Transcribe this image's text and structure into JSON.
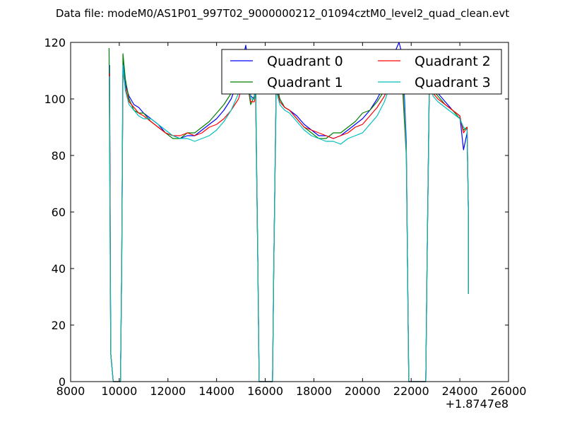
{
  "chart_data": {
    "type": "line",
    "title": "Data file: modeM0/AS1P01_997T02_9000000212_01094cztM0_level2_quad_clean.evt",
    "xlabel": "",
    "ylabel": "",
    "x_offset_label": "+1.8747e8",
    "xlim": [
      8000,
      26000
    ],
    "ylim": [
      0,
      120
    ],
    "x_ticks": [
      8000,
      10000,
      12000,
      14000,
      16000,
      18000,
      20000,
      22000,
      24000,
      26000
    ],
    "x_tick_labels": [
      "8000",
      "10000",
      "12000",
      "14000",
      "16000",
      "18000",
      "20000",
      "22000",
      "24000",
      "26000"
    ],
    "y_ticks": [
      0,
      20,
      40,
      60,
      80,
      100,
      120
    ],
    "y_tick_labels": [
      "0",
      "20",
      "40",
      "60",
      "80",
      "100",
      "120"
    ],
    "grid": false,
    "legend_placement": "top-right",
    "legend_columns": 2,
    "series": [
      {
        "name": "Quadrant 0",
        "color": "#0000ff",
        "points": [
          [
            9600,
            112
          ],
          [
            9650,
            10
          ],
          [
            9750,
            0
          ],
          [
            10050,
            0
          ],
          [
            10100,
            40
          ],
          [
            10150,
            113
          ],
          [
            10250,
            105
          ],
          [
            10400,
            101
          ],
          [
            10600,
            98
          ],
          [
            10800,
            97
          ],
          [
            11000,
            95
          ],
          [
            11300,
            93
          ],
          [
            11600,
            91
          ],
          [
            11900,
            88
          ],
          [
            12200,
            87
          ],
          [
            12500,
            86
          ],
          [
            12800,
            87
          ],
          [
            13100,
            87
          ],
          [
            13400,
            89
          ],
          [
            13700,
            91
          ],
          [
            14000,
            93
          ],
          [
            14300,
            96
          ],
          [
            14600,
            100
          ],
          [
            14900,
            107
          ],
          [
            15100,
            115
          ],
          [
            15200,
            119
          ],
          [
            15300,
            112
          ],
          [
            15400,
            101
          ],
          [
            15550,
            100
          ],
          [
            15600,
            105
          ],
          [
            15700,
            40
          ],
          [
            15750,
            0
          ],
          [
            16300,
            0
          ],
          [
            16350,
            40
          ],
          [
            16450,
            106
          ],
          [
            16600,
            100
          ],
          [
            16800,
            97
          ],
          [
            17000,
            96
          ],
          [
            17300,
            94
          ],
          [
            17600,
            91
          ],
          [
            17900,
            89
          ],
          [
            18200,
            87
          ],
          [
            18500,
            87
          ],
          [
            18800,
            86
          ],
          [
            19100,
            87
          ],
          [
            19400,
            89
          ],
          [
            19700,
            91
          ],
          [
            20000,
            93
          ],
          [
            20300,
            96
          ],
          [
            20600,
            100
          ],
          [
            20900,
            105
          ],
          [
            21100,
            110
          ],
          [
            21300,
            116
          ],
          [
            21500,
            120
          ],
          [
            21650,
            115
          ],
          [
            21800,
            85
          ],
          [
            21850,
            40
          ],
          [
            21900,
            0
          ],
          [
            22600,
            0
          ],
          [
            22650,
            40
          ],
          [
            22750,
            109
          ],
          [
            22900,
            104
          ],
          [
            23100,
            102
          ],
          [
            23400,
            99
          ],
          [
            23700,
            96
          ],
          [
            24000,
            94
          ],
          [
            24150,
            82
          ],
          [
            24300,
            88
          ],
          [
            24350,
            60
          ],
          [
            24350,
            33
          ]
        ]
      },
      {
        "name": "Quadrant 1",
        "color": "#008000",
        "points": [
          [
            9580,
            118
          ],
          [
            9650,
            10
          ],
          [
            9750,
            0
          ],
          [
            10050,
            0
          ],
          [
            10100,
            40
          ],
          [
            10150,
            116
          ],
          [
            10250,
            107
          ],
          [
            10400,
            100
          ],
          [
            10600,
            96
          ],
          [
            10800,
            95
          ],
          [
            11000,
            95
          ],
          [
            11300,
            92
          ],
          [
            11600,
            90
          ],
          [
            11900,
            88
          ],
          [
            12200,
            86
          ],
          [
            12500,
            86
          ],
          [
            12800,
            88
          ],
          [
            13100,
            88
          ],
          [
            13400,
            90
          ],
          [
            13700,
            92
          ],
          [
            14000,
            95
          ],
          [
            14300,
            98
          ],
          [
            14600,
            102
          ],
          [
            14900,
            106
          ],
          [
            15100,
            108
          ],
          [
            15200,
            110
          ],
          [
            15300,
            104
          ],
          [
            15400,
            98
          ],
          [
            15550,
            101
          ],
          [
            15600,
            110
          ],
          [
            15700,
            40
          ],
          [
            15750,
            0
          ],
          [
            16300,
            0
          ],
          [
            16350,
            40
          ],
          [
            16450,
            105
          ],
          [
            16600,
            100
          ],
          [
            16800,
            97
          ],
          [
            17000,
            96
          ],
          [
            17300,
            93
          ],
          [
            17600,
            90
          ],
          [
            17900,
            88
          ],
          [
            18200,
            86
          ],
          [
            18500,
            86
          ],
          [
            18800,
            88
          ],
          [
            19100,
            88
          ],
          [
            19400,
            90
          ],
          [
            19700,
            92
          ],
          [
            20000,
            95
          ],
          [
            20300,
            96
          ],
          [
            20600,
            99
          ],
          [
            20900,
            103
          ],
          [
            21100,
            107
          ],
          [
            21300,
            110
          ],
          [
            21500,
            109
          ],
          [
            21650,
            103
          ],
          [
            21800,
            80
          ],
          [
            21850,
            40
          ],
          [
            21900,
            0
          ],
          [
            22600,
            0
          ],
          [
            22650,
            40
          ],
          [
            22750,
            110
          ],
          [
            22900,
            103
          ],
          [
            23100,
            101
          ],
          [
            23400,
            98
          ],
          [
            23700,
            96
          ],
          [
            24000,
            93
          ],
          [
            24150,
            89
          ],
          [
            24300,
            90
          ],
          [
            24350,
            60
          ],
          [
            24350,
            31
          ]
        ]
      },
      {
        "name": "Quadrant 2",
        "color": "#ff0000",
        "points": [
          [
            9600,
            109
          ],
          [
            9650,
            10
          ],
          [
            9750,
            0
          ],
          [
            10050,
            0
          ],
          [
            10100,
            40
          ],
          [
            10150,
            110
          ],
          [
            10250,
            104
          ],
          [
            10400,
            99
          ],
          [
            10600,
            97
          ],
          [
            10800,
            95
          ],
          [
            11000,
            94
          ],
          [
            11300,
            92
          ],
          [
            11600,
            90
          ],
          [
            11900,
            88
          ],
          [
            12200,
            87
          ],
          [
            12500,
            87
          ],
          [
            12800,
            88
          ],
          [
            13100,
            87
          ],
          [
            13400,
            88
          ],
          [
            13700,
            90
          ],
          [
            14000,
            91
          ],
          [
            14300,
            93
          ],
          [
            14600,
            96
          ],
          [
            14900,
            100
          ],
          [
            15100,
            106
          ],
          [
            15200,
            111
          ],
          [
            15300,
            106
          ],
          [
            15400,
            99
          ],
          [
            15550,
            99
          ],
          [
            15600,
            103
          ],
          [
            15700,
            40
          ],
          [
            15750,
            0
          ],
          [
            16300,
            0
          ],
          [
            16350,
            40
          ],
          [
            16450,
            104
          ],
          [
            16600,
            99
          ],
          [
            16800,
            97
          ],
          [
            17000,
            96
          ],
          [
            17300,
            93
          ],
          [
            17600,
            90
          ],
          [
            17900,
            89
          ],
          [
            18200,
            88
          ],
          [
            18500,
            87
          ],
          [
            18800,
            86
          ],
          [
            19100,
            87
          ],
          [
            19400,
            88
          ],
          [
            19700,
            90
          ],
          [
            20000,
            91
          ],
          [
            20300,
            94
          ],
          [
            20600,
            97
          ],
          [
            20900,
            101
          ],
          [
            21100,
            105
          ],
          [
            21300,
            110
          ],
          [
            21500,
            114
          ],
          [
            21650,
            108
          ],
          [
            21800,
            82
          ],
          [
            21850,
            40
          ],
          [
            21900,
            0
          ],
          [
            22600,
            0
          ],
          [
            22650,
            40
          ],
          [
            22750,
            108
          ],
          [
            22900,
            102
          ],
          [
            23100,
            100
          ],
          [
            23400,
            98
          ],
          [
            23700,
            96
          ],
          [
            24000,
            94
          ],
          [
            24150,
            88
          ],
          [
            24300,
            90
          ],
          [
            24350,
            60
          ],
          [
            24350,
            31
          ]
        ]
      },
      {
        "name": "Quadrant 3",
        "color": "#00bfbf",
        "points": [
          [
            9590,
            108
          ],
          [
            9650,
            10
          ],
          [
            9750,
            0
          ],
          [
            10050,
            0
          ],
          [
            10100,
            40
          ],
          [
            10150,
            112
          ],
          [
            10250,
            103
          ],
          [
            10400,
            98
          ],
          [
            10600,
            96
          ],
          [
            10800,
            94
          ],
          [
            11000,
            93
          ],
          [
            11300,
            93
          ],
          [
            11600,
            91
          ],
          [
            11900,
            89
          ],
          [
            12200,
            87
          ],
          [
            12500,
            86
          ],
          [
            12800,
            86
          ],
          [
            13100,
            85
          ],
          [
            13400,
            86
          ],
          [
            13700,
            87
          ],
          [
            14000,
            89
          ],
          [
            14300,
            92
          ],
          [
            14600,
            96
          ],
          [
            14900,
            102
          ],
          [
            15100,
            110
          ],
          [
            15200,
            116
          ],
          [
            15300,
            110
          ],
          [
            15400,
            100
          ],
          [
            15550,
            100
          ],
          [
            15600,
            106
          ],
          [
            15700,
            40
          ],
          [
            15750,
            0
          ],
          [
            16300,
            0
          ],
          [
            16350,
            40
          ],
          [
            16450,
            103
          ],
          [
            16600,
            98
          ],
          [
            16800,
            96
          ],
          [
            17000,
            95
          ],
          [
            17300,
            92
          ],
          [
            17600,
            89
          ],
          [
            17900,
            87
          ],
          [
            18200,
            86
          ],
          [
            18500,
            85
          ],
          [
            18800,
            85
          ],
          [
            19100,
            84
          ],
          [
            19400,
            86
          ],
          [
            19700,
            87
          ],
          [
            20000,
            88
          ],
          [
            20300,
            91
          ],
          [
            20600,
            94
          ],
          [
            20900,
            99
          ],
          [
            21100,
            104
          ],
          [
            21300,
            110
          ],
          [
            21500,
            116
          ],
          [
            21650,
            111
          ],
          [
            21800,
            83
          ],
          [
            21850,
            40
          ],
          [
            21900,
            0
          ],
          [
            22600,
            0
          ],
          [
            22650,
            40
          ],
          [
            22750,
            107
          ],
          [
            22900,
            101
          ],
          [
            23100,
            99
          ],
          [
            23400,
            97
          ],
          [
            23700,
            95
          ],
          [
            24000,
            93
          ],
          [
            24150,
            90
          ],
          [
            24300,
            89
          ],
          [
            24350,
            60
          ],
          [
            24350,
            31
          ]
        ]
      }
    ]
  }
}
